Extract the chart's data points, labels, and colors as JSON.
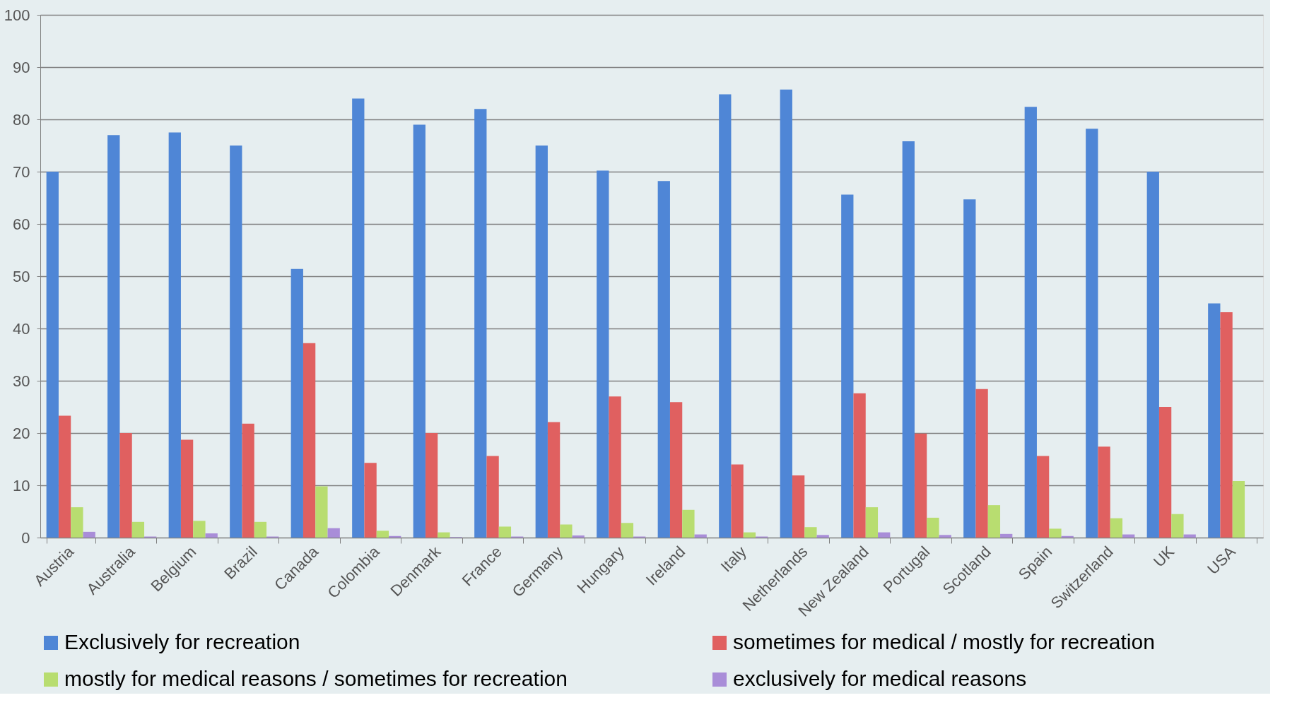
{
  "chart_data": {
    "type": "bar",
    "categories": [
      "Austria",
      "Australia",
      "Belgium",
      "Brazil",
      "Canada",
      "Colombia",
      "Denmark",
      "France",
      "Germany",
      "Hungary",
      "Ireland",
      "Italy",
      "Netherlands",
      "New Zealand",
      "Portugal",
      "Scotland",
      "Spain",
      "Switzerland",
      "UK",
      "USA"
    ],
    "series": [
      {
        "name": "Exclusively for recreation",
        "color": "#4f86d6",
        "values": [
          70,
          77,
          77.5,
          75,
          51.4,
          84,
          79,
          82,
          75,
          70.2,
          68.2,
          84.8,
          85.7,
          65.6,
          75.8,
          64.7,
          82.4,
          78.2,
          70,
          44.8
        ]
      },
      {
        "name": "sometimes for medical / mostly for recreation",
        "color": "#e06060",
        "values": [
          23.3,
          20,
          18.7,
          21.8,
          37.2,
          14.3,
          20,
          15.6,
          22.1,
          27,
          25.9,
          14,
          11.9,
          27.6,
          19.9,
          28.4,
          15.6,
          17.4,
          25,
          43.1
        ]
      },
      {
        "name": "mostly for medical reasons / sometimes for recreation",
        "color": "#b8dd70",
        "values": [
          5.8,
          3,
          3.2,
          3,
          9.8,
          1.3,
          1,
          2.1,
          2.5,
          2.8,
          5.3,
          1,
          2,
          5.8,
          3.8,
          6.2,
          1.7,
          3.7,
          4.5,
          10.8
        ]
      },
      {
        "name": "exclusively for medical reasons",
        "color": "#a98dd8",
        "values": [
          1.1,
          0.2,
          0.8,
          0.2,
          1.8,
          0.3,
          0.1,
          0.2,
          0.4,
          0.2,
          0.6,
          0.2,
          0.5,
          1,
          0.5,
          0.7,
          0.3,
          0.6,
          0.6,
          0
        ]
      }
    ],
    "ylim": [
      0,
      100
    ],
    "yticks": [
      0,
      10,
      20,
      30,
      40,
      50,
      60,
      70,
      80,
      90,
      100
    ],
    "grid": "y",
    "legend": "bottom"
  }
}
